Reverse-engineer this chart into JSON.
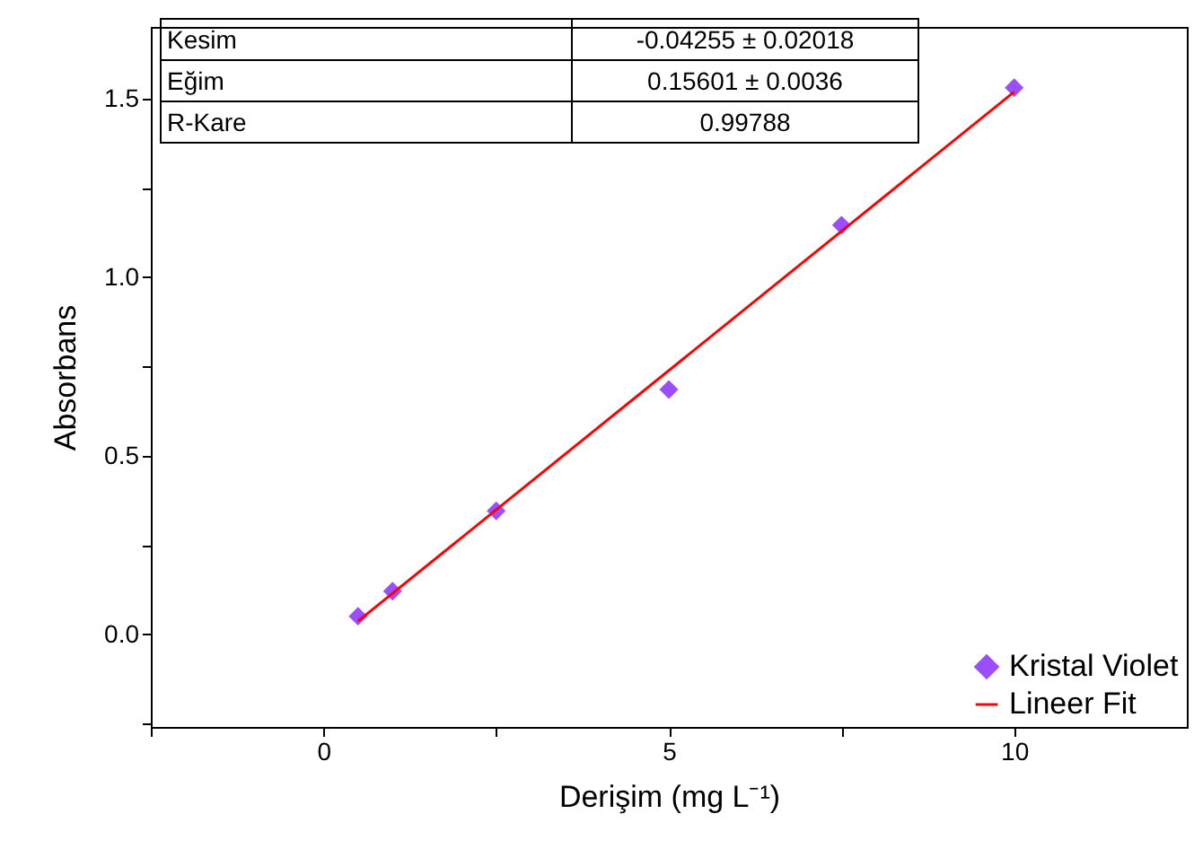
{
  "chart_data": {
    "type": "scatter",
    "xlabel": "Derişim (mg L⁻¹)",
    "ylabel": "Absorbans",
    "series": [
      {
        "name": "Kristal Violet",
        "color": "#9b4dff",
        "marker": "diamond",
        "x": [
          0.5,
          1,
          2.5,
          5,
          7.5,
          10
        ],
        "values": [
          0.05,
          0.12,
          0.345,
          0.685,
          1.145,
          1.53
        ]
      },
      {
        "name": "Lineer Fit",
        "type": "line",
        "color": "#ff0000",
        "line_style": "solid",
        "x": [
          0.5,
          10
        ],
        "values": [
          0.036,
          1.518
        ]
      }
    ],
    "xlim": [
      -2.5,
      12.5
    ],
    "xticks": [
      {
        "value": -2.5,
        "label": null
      },
      0,
      {
        "value": 2.5,
        "label": null
      },
      5,
      {
        "value": 7.5,
        "label": null
      },
      10
    ],
    "ylim": [
      -0.26,
      1.7
    ],
    "yticks": [
      {
        "value": -0.25,
        "label": null
      },
      {
        "value": 0,
        "label": "0.0"
      },
      {
        "value": 0.25,
        "label": null
      },
      {
        "value": 0.5,
        "label": "0.5"
      },
      {
        "value": 0.75,
        "label": null
      },
      {
        "value": 1,
        "label": "1.0"
      },
      {
        "value": 1.25,
        "label": null
      },
      {
        "value": 1.5,
        "label": "1.5"
      }
    ],
    "annotations": [
      "Kesim",
      "-0.04255 ± 0.02018",
      "Eğim",
      "0.15601 ± 0.0036",
      "R-Kare",
      "0.99788"
    ],
    "grid": false,
    "legend": "bottom right"
  }
}
